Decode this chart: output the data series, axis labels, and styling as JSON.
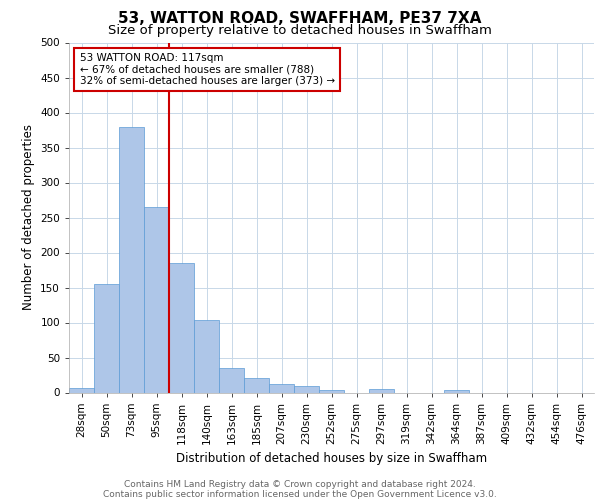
{
  "title1": "53, WATTON ROAD, SWAFFHAM, PE37 7XA",
  "title2": "Size of property relative to detached houses in Swaffham",
  "xlabel": "Distribution of detached houses by size in Swaffham",
  "ylabel": "Number of detached properties",
  "bin_labels": [
    "28sqm",
    "50sqm",
    "73sqm",
    "95sqm",
    "118sqm",
    "140sqm",
    "163sqm",
    "185sqm",
    "207sqm",
    "230sqm",
    "252sqm",
    "275sqm",
    "297sqm",
    "319sqm",
    "342sqm",
    "364sqm",
    "387sqm",
    "409sqm",
    "432sqm",
    "454sqm",
    "476sqm"
  ],
  "bar_heights": [
    7,
    155,
    380,
    265,
    185,
    103,
    35,
    21,
    12,
    9,
    3,
    0,
    5,
    0,
    0,
    3,
    0,
    0,
    0,
    0,
    0
  ],
  "bar_color": "#aec6e8",
  "bar_edge_color": "#5b9bd5",
  "vline_index": 4,
  "vline_color": "#cc0000",
  "annotation_text": "53 WATTON ROAD: 117sqm\n← 67% of detached houses are smaller (788)\n32% of semi-detached houses are larger (373) →",
  "annotation_box_color": "#ffffff",
  "annotation_box_edge": "#cc0000",
  "ylim": [
    0,
    500
  ],
  "yticks": [
    0,
    50,
    100,
    150,
    200,
    250,
    300,
    350,
    400,
    450,
    500
  ],
  "bg_color": "#ffffff",
  "grid_color": "#c8d8e8",
  "footer": "Contains HM Land Registry data © Crown copyright and database right 2024.\nContains public sector information licensed under the Open Government Licence v3.0.",
  "title1_fontsize": 11,
  "title2_fontsize": 9.5,
  "xlabel_fontsize": 8.5,
  "ylabel_fontsize": 8.5,
  "tick_fontsize": 7.5,
  "footer_fontsize": 6.5
}
